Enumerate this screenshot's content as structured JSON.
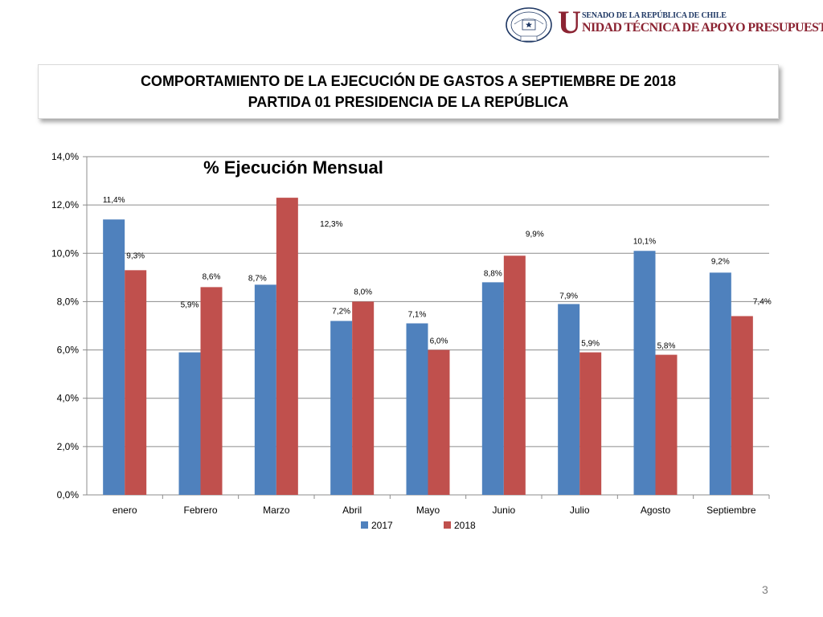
{
  "header": {
    "logo_seal_text": "REPÚBLICA DE CHILE · SENADO",
    "logo_u": "U",
    "logo_top": "SENADO DE LA REPÚBLICA DE CHILE",
    "logo_main": "NIDAD TÉCNICA DE APOYO PRESUPUESTARIO"
  },
  "title": {
    "line1": "COMPORTAMIENTO DE LA EJECUCIÓN DE GASTOS A SEPTIEMBRE DE 2018",
    "line2": "PARTIDA 01 PRESIDENCIA DE LA REPÚBLICA"
  },
  "chart_data": {
    "type": "bar",
    "title": "% Ejecución Mensual",
    "categories": [
      "enero",
      "Febrero",
      "Marzo",
      "Abril",
      "Mayo",
      "Junio",
      "Julio",
      "Agosto",
      "Septiembre"
    ],
    "series": [
      {
        "name": "2017",
        "color": "#4f81bd",
        "values": [
          11.4,
          5.9,
          8.7,
          7.2,
          7.1,
          8.8,
          7.9,
          10.1,
          9.2
        ],
        "labels": [
          "11,4%",
          "5,9%",
          "8,7%",
          "7,2%",
          "7,1%",
          "8,8%",
          "7,9%",
          "10,1%",
          "9,2%"
        ]
      },
      {
        "name": "2018",
        "color": "#c0504d",
        "values": [
          9.3,
          8.6,
          12.3,
          8.0,
          6.0,
          9.9,
          5.9,
          5.8,
          7.4
        ],
        "labels": [
          "9,3%",
          "8,6%",
          "12,3%",
          "8,0%",
          "6,0%",
          "9,9%",
          "5,9%",
          "5,8%",
          "7,4%"
        ]
      }
    ],
    "ylim": [
      0,
      14
    ],
    "yticks": [
      0,
      2,
      4,
      6,
      8,
      10,
      12,
      14
    ],
    "ytick_labels": [
      "0,0%",
      "2,0%",
      "4,0%",
      "6,0%",
      "8,0%",
      "10,0%",
      "12,0%",
      "14,0%"
    ],
    "xlabel": "",
    "ylabel": "",
    "grid": true,
    "legend": "bottom"
  },
  "footer": {
    "page_number": "3"
  }
}
